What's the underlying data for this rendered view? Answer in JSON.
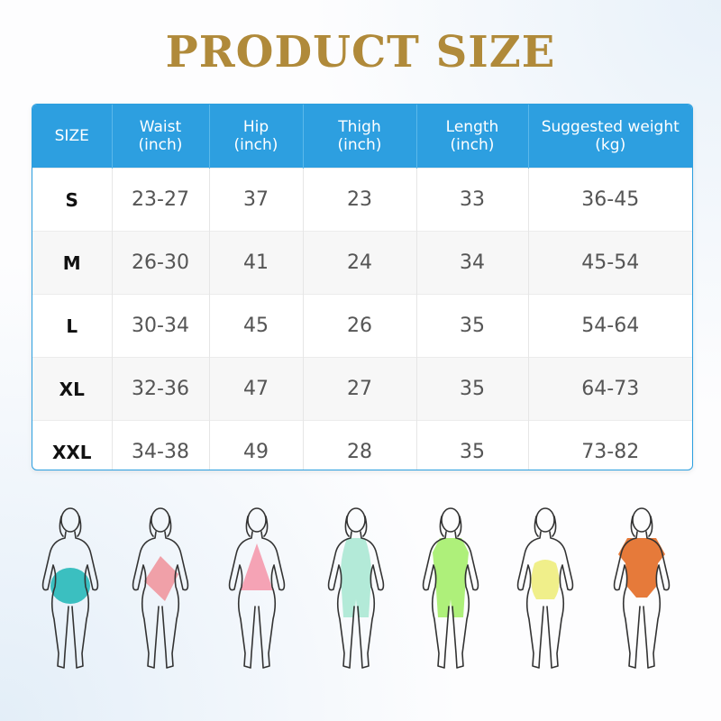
{
  "header": {
    "title": "PRODUCT SIZE"
  },
  "table": {
    "columns": [
      [
        "SIZE"
      ],
      [
        "Waist",
        "(inch)"
      ],
      [
        "Hip",
        "(inch)"
      ],
      [
        "Thigh",
        "(inch)"
      ],
      [
        "Length",
        "(inch)"
      ],
      [
        "Suggested weight",
        "(kg)"
      ]
    ],
    "rows": [
      [
        "S",
        "23-27",
        "37",
        "23",
        "33",
        "36-45"
      ],
      [
        "M",
        "26-30",
        "41",
        "24",
        "34",
        "45-54"
      ],
      [
        "L",
        "30-34",
        "45",
        "26",
        "35",
        "54-64"
      ],
      [
        "XL",
        "32-36",
        "47",
        "27",
        "35",
        "64-73"
      ],
      [
        "XXL",
        "34-38",
        "49",
        "28",
        "35",
        "73-82"
      ]
    ]
  }
}
